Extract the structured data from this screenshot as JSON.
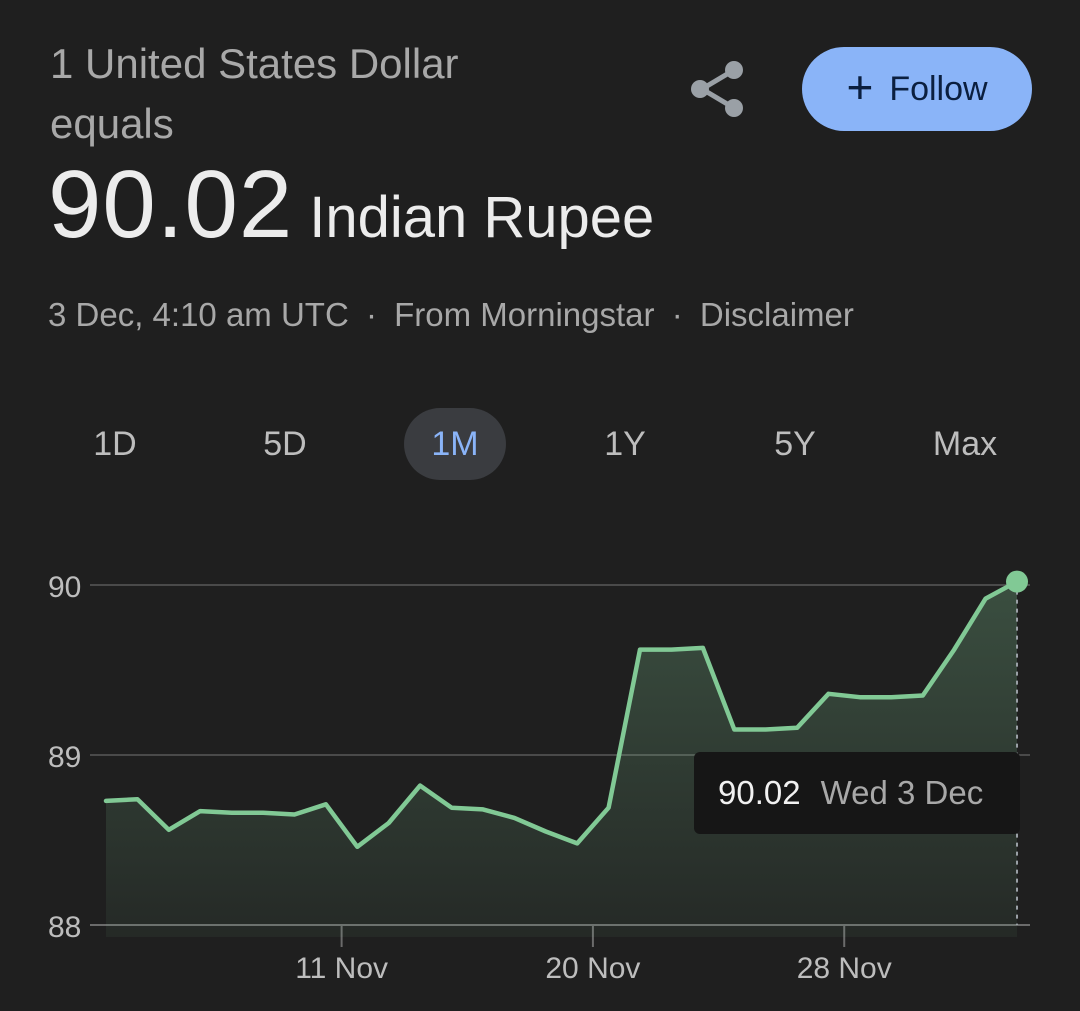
{
  "header": {
    "base_line1": "1 United States Dollar",
    "base_line2": "equals",
    "rate": "90.02",
    "currency": "Indian Rupee",
    "follow_label": "Follow",
    "share_icon": "share-icon",
    "plus_icon": "+"
  },
  "meta": {
    "timestamp": "3 Dec, 4:10 am UTC",
    "source": "From Morningstar",
    "disclaimer": "Disclaimer",
    "separator": "·"
  },
  "ranges": [
    {
      "label": "1D",
      "active": false
    },
    {
      "label": "5D",
      "active": false
    },
    {
      "label": "1M",
      "active": true
    },
    {
      "label": "1Y",
      "active": false
    },
    {
      "label": "5Y",
      "active": false
    },
    {
      "label": "Max",
      "active": false
    }
  ],
  "tooltip": {
    "value": "90.02",
    "date": "Wed 3 Dec"
  },
  "colors": {
    "line": "#81c995",
    "accent": "#8ab4f8",
    "background": "#1f1f1f"
  },
  "chart_data": {
    "type": "area",
    "y_ticks": [
      "90",
      "89",
      "88"
    ],
    "ylim": [
      88,
      90
    ],
    "x_ticks": [
      "11 Nov",
      "20 Nov",
      "28 Nov"
    ],
    "series": [
      {
        "values": [
          88.73,
          88.74,
          88.56,
          88.67,
          88.66,
          88.66,
          88.65,
          88.71,
          88.46,
          88.6,
          88.82,
          88.69,
          88.68,
          88.63,
          88.55,
          88.48,
          88.69,
          89.62,
          89.62,
          89.63,
          89.15,
          89.15,
          89.16,
          89.36,
          89.34,
          89.34,
          89.35,
          89.62,
          89.92,
          90.02
        ]
      }
    ]
  }
}
